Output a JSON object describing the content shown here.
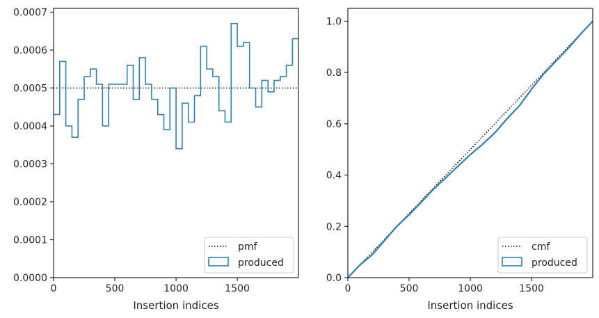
{
  "chart_data": [
    {
      "type": "line",
      "subtype": "step-histogram",
      "title": "",
      "xlabel": "Insertion indices",
      "ylabel": "",
      "xlim": [
        0,
        1999
      ],
      "ylim": [
        0,
        0.00071
      ],
      "xticks": [
        0,
        500,
        1000,
        1500
      ],
      "xtick_labels": [
        "0",
        "500",
        "1000",
        "1500"
      ],
      "yticks": [
        0,
        0.0001,
        0.0002,
        0.0003,
        0.0004,
        0.0005,
        0.0006,
        0.0007
      ],
      "ytick_labels": [
        "0.0000",
        "0.0001",
        "0.0002",
        "0.0003",
        "0.0004",
        "0.0005",
        "0.0006",
        "0.0007"
      ],
      "grid": false,
      "legend_position": "lower-right",
      "series": [
        {
          "name": "pmf",
          "style": "dotted",
          "color": "#000000",
          "x": [
            0,
            1999
          ],
          "y": [
            0.0005,
            0.0005
          ]
        },
        {
          "name": "produced",
          "style": "step",
          "color": "#2e7fb0",
          "bin_width": 50,
          "bin_starts": [
            0,
            50,
            100,
            150,
            200,
            250,
            300,
            350,
            400,
            450,
            500,
            550,
            600,
            650,
            700,
            750,
            800,
            850,
            900,
            950,
            1000,
            1050,
            1100,
            1150,
            1200,
            1250,
            1300,
            1350,
            1400,
            1450,
            1500,
            1550,
            1600,
            1650,
            1700,
            1750,
            1800,
            1850,
            1900,
            1950
          ],
          "values": [
            0.00043,
            0.00057,
            0.0004,
            0.00037,
            0.00047,
            0.00053,
            0.00055,
            0.00051,
            0.0004,
            0.00051,
            0.00051,
            0.00051,
            0.00056,
            0.00047,
            0.00058,
            0.00051,
            0.00047,
            0.00043,
            0.00039,
            0.0005,
            0.00034,
            0.00046,
            0.00041,
            0.00048,
            0.00061,
            0.00055,
            0.00053,
            0.00044,
            0.00041,
            0.00067,
            0.00061,
            0.00062,
            0.0005,
            0.00045,
            0.00052,
            0.00049,
            0.00052,
            0.00053,
            0.00056,
            0.00063
          ]
        }
      ]
    },
    {
      "type": "line",
      "title": "",
      "xlabel": "Insertion indices",
      "ylabel": "",
      "xlim": [
        0,
        1999
      ],
      "ylim": [
        0,
        1.05
      ],
      "xticks": [
        0,
        500,
        1000,
        1500
      ],
      "xtick_labels": [
        "0",
        "500",
        "1000",
        "1500"
      ],
      "yticks": [
        0,
        0.2,
        0.4,
        0.6,
        0.8,
        1.0
      ],
      "ytick_labels": [
        "0.0",
        "0.2",
        "0.4",
        "0.6",
        "0.8",
        "1.0"
      ],
      "grid": false,
      "legend_position": "lower-right",
      "series": [
        {
          "name": "cmf",
          "style": "dotted",
          "color": "#000000",
          "x": [
            0,
            1999
          ],
          "y": [
            0,
            1.0
          ]
        },
        {
          "name": "produced",
          "style": "solid",
          "color": "#2e7fb0",
          "x": [
            0,
            100,
            200,
            300,
            400,
            500,
            600,
            700,
            800,
            900,
            1000,
            1100,
            1200,
            1300,
            1400,
            1500,
            1600,
            1700,
            1800,
            1900,
            1999
          ],
          "y": [
            0,
            0.05,
            0.09,
            0.145,
            0.2,
            0.245,
            0.295,
            0.345,
            0.39,
            0.435,
            0.48,
            0.52,
            0.565,
            0.62,
            0.67,
            0.735,
            0.795,
            0.845,
            0.895,
            0.95,
            1.0
          ]
        }
      ]
    }
  ]
}
